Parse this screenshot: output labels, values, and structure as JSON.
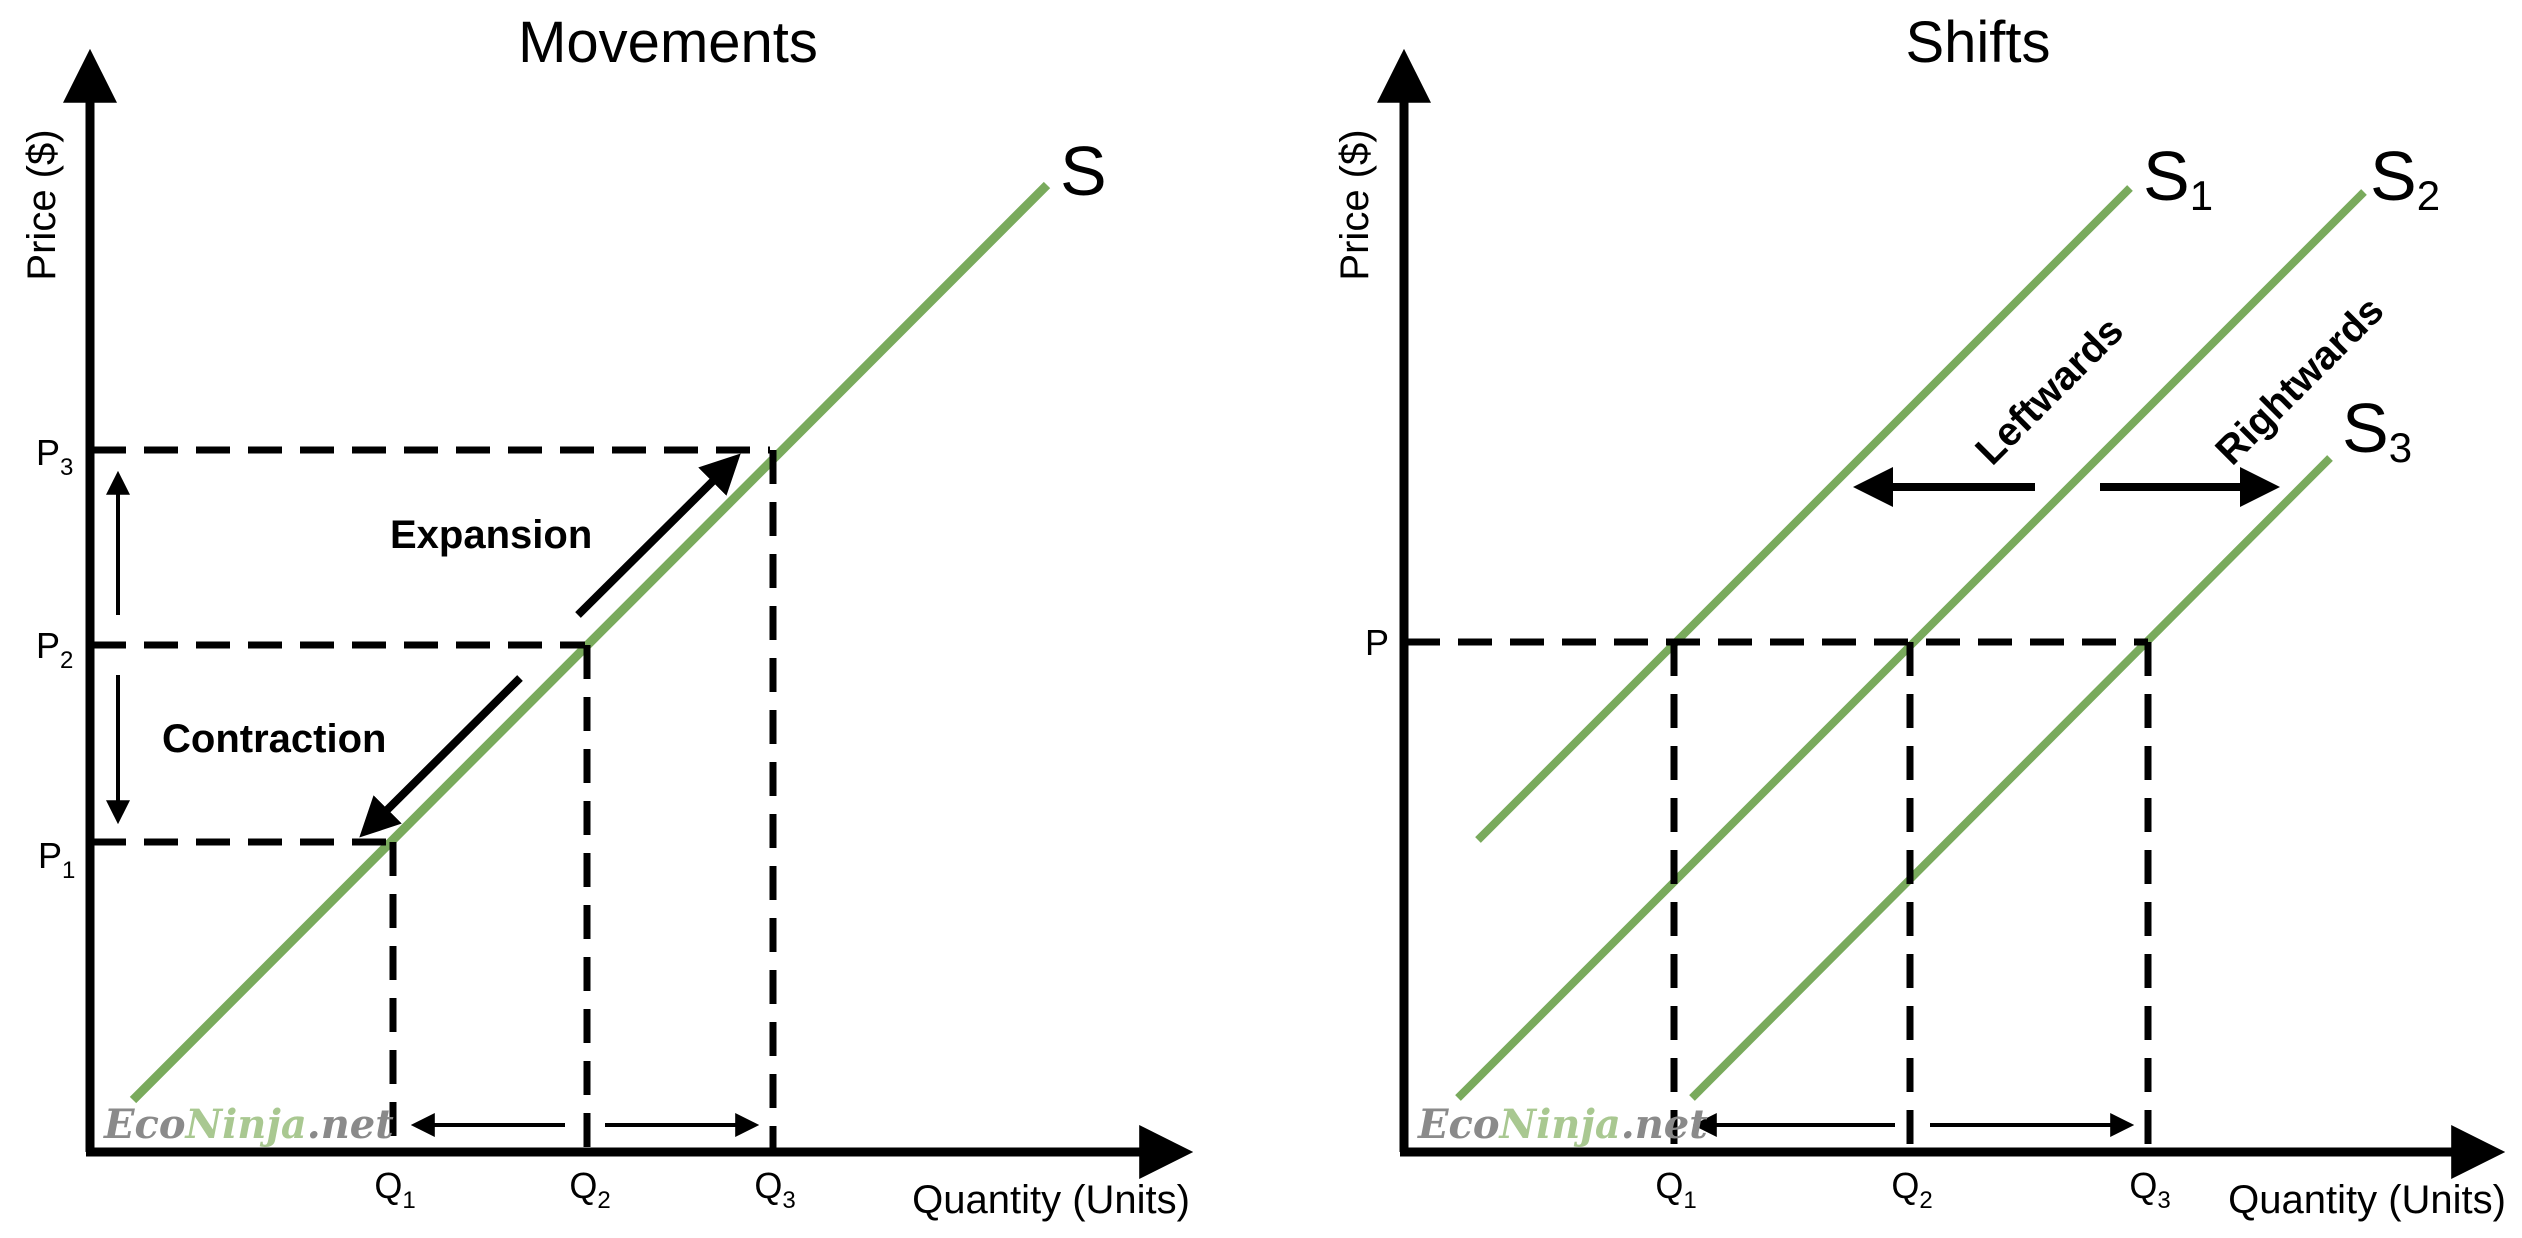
{
  "colors": {
    "curve": "#79aa5c",
    "axis": "#000000",
    "watermark_eco": "#8a8a8a",
    "watermark_ninja": "#a9c891",
    "watermark_net": "#8a8a8a"
  },
  "left_panel": {
    "title": "Movements",
    "ylabel": "Price ($)",
    "xlabel": "Quantity (Units)",
    "curve_label": "S",
    "price_ticks": [
      {
        "base": "P",
        "sub": "3"
      },
      {
        "base": "P",
        "sub": "2"
      },
      {
        "base": "P",
        "sub": "1"
      }
    ],
    "quantity_ticks": [
      {
        "base": "Q",
        "sub": "1"
      },
      {
        "base": "Q",
        "sub": "2"
      },
      {
        "base": "Q",
        "sub": "3"
      }
    ],
    "annotation_up": "Expansion",
    "annotation_down": "Contraction"
  },
  "right_panel": {
    "title": "Shifts",
    "ylabel": "Price ($)",
    "xlabel": "Quantity (Units)",
    "price_tick": "P",
    "curves": [
      {
        "base": "S",
        "sub": "1"
      },
      {
        "base": "S",
        "sub": "2"
      },
      {
        "base": "S",
        "sub": "3"
      }
    ],
    "quantity_ticks": [
      {
        "base": "Q",
        "sub": "1"
      },
      {
        "base": "Q",
        "sub": "2"
      },
      {
        "base": "Q",
        "sub": "3"
      }
    ],
    "annotation_left": "Leftwards",
    "annotation_right": "Rightwards"
  },
  "watermark": {
    "eco": "Eco",
    "ninja": "Ninja",
    "net": ".net"
  }
}
